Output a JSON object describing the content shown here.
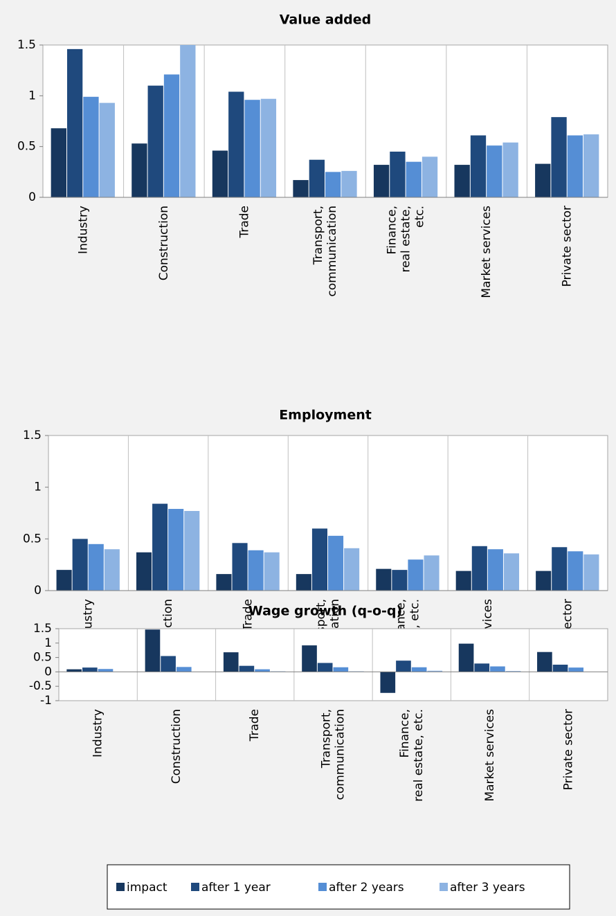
{
  "chart_data": [
    {
      "type": "bar",
      "title": "Value added",
      "categories": [
        "Industry",
        "Construction",
        "Trade",
        "Transport,\ncommunication",
        "Finance,\nreal estate,\netc.",
        "Market services",
        "Private sector"
      ],
      "series": [
        {
          "name": "impact",
          "color": "#17375e",
          "values": [
            0.68,
            0.53,
            0.46,
            0.17,
            0.32,
            0.32,
            0.33
          ]
        },
        {
          "name": "after 1 year",
          "color": "#1f497d",
          "values": [
            1.46,
            1.1,
            1.04,
            0.37,
            0.45,
            0.61,
            0.79
          ]
        },
        {
          "name": "after 2 years",
          "color": "#558ed5",
          "values": [
            0.99,
            1.21,
            0.96,
            0.25,
            0.35,
            0.51,
            0.61
          ]
        },
        {
          "name": "after 3 years",
          "color": "#8db3e2",
          "values": [
            0.93,
            1.5,
            0.97,
            0.26,
            0.4,
            0.54,
            0.62
          ]
        }
      ],
      "ylim": [
        0,
        1.5
      ],
      "yticks": [
        0,
        0.5,
        1,
        1.5
      ]
    },
    {
      "type": "bar",
      "title": "Employment",
      "categories": [
        "Industry",
        "Construction",
        "Trade",
        "Transport,\ncommunication",
        "Finance,\nreal estate, etc.",
        "Market services",
        "Private sector"
      ],
      "series": [
        {
          "name": "impact",
          "color": "#17375e",
          "values": [
            0.2,
            0.37,
            0.16,
            0.16,
            0.21,
            0.19,
            0.19
          ]
        },
        {
          "name": "after 1 year",
          "color": "#1f497d",
          "values": [
            0.5,
            0.84,
            0.46,
            0.6,
            0.2,
            0.43,
            0.42
          ]
        },
        {
          "name": "after 2 years",
          "color": "#558ed5",
          "values": [
            0.45,
            0.79,
            0.39,
            0.53,
            0.3,
            0.4,
            0.38
          ]
        },
        {
          "name": "after 3 years",
          "color": "#8db3e2",
          "values": [
            0.4,
            0.77,
            0.37,
            0.41,
            0.34,
            0.36,
            0.35
          ]
        }
      ],
      "ylim": [
        0,
        1.5
      ],
      "yticks": [
        0,
        0.5,
        1,
        1.5
      ]
    },
    {
      "type": "bar",
      "title": "Wage growth (q-o-q)",
      "categories": [
        "Industry",
        "Construction",
        "Trade",
        "Transport,\ncommunication",
        "Finance,\nreal estate, etc.",
        "Market services",
        "Private sector"
      ],
      "series": [
        {
          "name": "impact",
          "color": "#17375e",
          "values": [
            0.09,
            1.47,
            0.68,
            0.92,
            -0.73,
            0.98,
            0.69
          ]
        },
        {
          "name": "after 1 year",
          "color": "#1f497d",
          "values": [
            0.15,
            0.55,
            0.21,
            0.31,
            0.39,
            0.29,
            0.25
          ]
        },
        {
          "name": "after 2 years",
          "color": "#558ed5",
          "values": [
            0.1,
            0.17,
            0.09,
            0.16,
            0.16,
            0.19,
            0.15
          ]
        },
        {
          "name": "after 3 years",
          "color": "#8db3e2",
          "values": [
            0.01,
            0.01,
            0.02,
            0.02,
            0.04,
            0.03,
            0.01
          ]
        }
      ],
      "ylim": [
        -1,
        1.5
      ],
      "yticks": [
        -1,
        -0.5,
        0,
        0.5,
        1,
        1.5
      ]
    }
  ]
}
